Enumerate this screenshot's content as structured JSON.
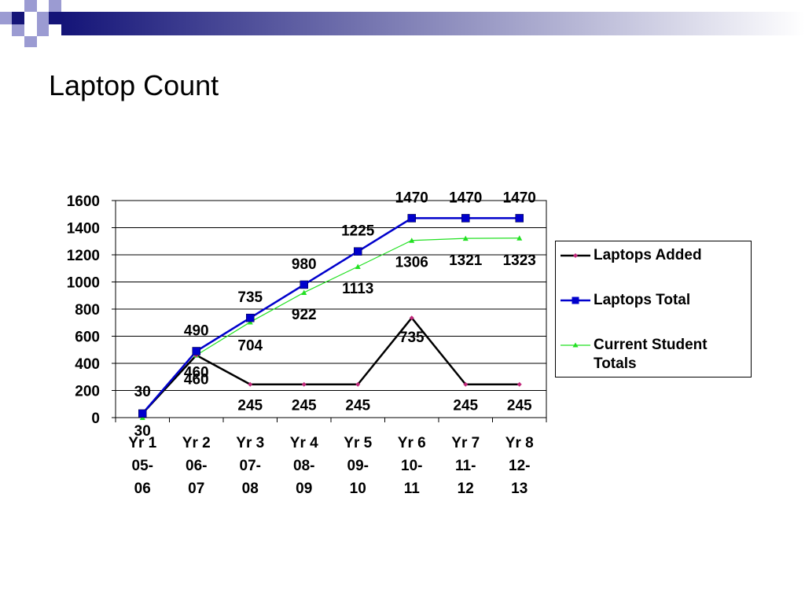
{
  "slide": {
    "title": "Laptop Count"
  },
  "colors": {
    "deco_dark": "#141478",
    "deco_light": "#9b9bd2",
    "laptops_added": "#000000",
    "laptops_added_marker": "#c0287a",
    "laptops_total": "#0000cc",
    "student_totals": "#22e022"
  },
  "chart_data": {
    "type": "line",
    "categories": [
      "Yr 1 05-06",
      "Yr 2 06-07",
      "Yr 3 07-08",
      "Yr 4 08-09",
      "Yr 5 09-10",
      "Yr 6 10-11",
      "Yr 7 11-12",
      "Yr 8 12-13"
    ],
    "category_lines": [
      [
        "Yr 1",
        "05-",
        "06"
      ],
      [
        "Yr 2",
        "06-",
        "07"
      ],
      [
        "Yr 3",
        "07-",
        "08"
      ],
      [
        "Yr 4",
        "08-",
        "09"
      ],
      [
        "Yr 5",
        "09-",
        "10"
      ],
      [
        "Yr 6",
        "10-",
        "11"
      ],
      [
        "Yr 7",
        "11-",
        "12"
      ],
      [
        "Yr 8",
        "12-",
        "13"
      ]
    ],
    "series": [
      {
        "name": "Laptops Added",
        "values": [
          30,
          460,
          245,
          245,
          245,
          735,
          245,
          245
        ]
      },
      {
        "name": "Laptops Total",
        "values": [
          30,
          490,
          735,
          980,
          1225,
          1470,
          1470,
          1470
        ]
      },
      {
        "name": "Current Student Totals",
        "values": [
          null,
          460,
          704,
          922,
          1113,
          1306,
          1321,
          1323
        ]
      }
    ],
    "data_labels": {
      "Laptops Added": [
        "30",
        "460",
        "245",
        "245",
        "245",
        "735",
        "245",
        "245"
      ],
      "Laptops Total": [
        "30",
        "490",
        "735",
        "980",
        "1225",
        "1470",
        "1470",
        "1470"
      ],
      "Current Student Totals": [
        "",
        "460",
        "704",
        "922",
        "1113",
        "1306",
        "1321",
        "1323"
      ]
    },
    "yticks": [
      "0",
      "200",
      "400",
      "600",
      "800",
      "1000",
      "1200",
      "1400",
      "1600"
    ],
    "ylim": [
      0,
      1600
    ],
    "title": "",
    "xlabel": "",
    "ylabel": "",
    "grid": true,
    "legend_position": "right"
  },
  "legend": {
    "items": [
      {
        "label": "Laptops Added",
        "icon": "diamond-marker"
      },
      {
        "label": "Laptops Total",
        "icon": "square-marker"
      },
      {
        "label": "Current Student Totals",
        "icon": "triangle-marker",
        "lines": [
          "Current Student",
          "Totals"
        ]
      }
    ]
  }
}
